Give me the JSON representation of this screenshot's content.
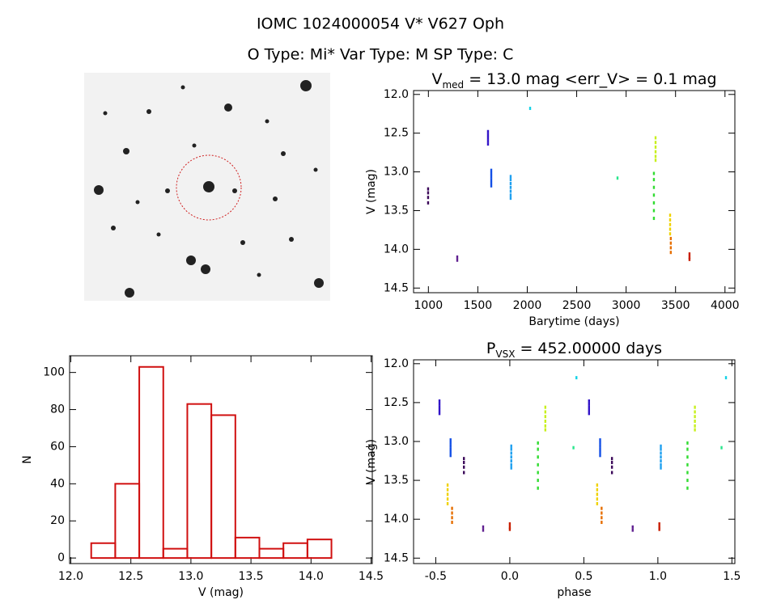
{
  "title": "IOMC 1024000054   V* V627 Oph",
  "subtitle": "O Type: Mi*   Var Type: M   SP Type: C",
  "chart_data": [
    {
      "type": "scatter",
      "title": [
        "V",
        "med",
        " = 13.0 mag <err_V> = 0.1 mag"
      ],
      "xlabel": "Barytime (days)",
      "ylabel": "V (mag)",
      "xlim": [
        850,
        4100
      ],
      "ylim": [
        14.56,
        11.95
      ],
      "xticks": [
        1000,
        1500,
        2000,
        2500,
        3000,
        3500,
        4000
      ],
      "yticks": [
        {
          "value": 12,
          "label": "12.0"
        },
        12.5,
        {
          "value": 13,
          "label": "13.0"
        },
        13.5,
        {
          "value": 14,
          "label": "14.0"
        },
        14.5
      ],
      "series": [
        {
          "color": "#3c0a5a",
          "x": [
            997,
            997,
            997,
            997
          ],
          "values": [
            13.22,
            13.27,
            13.33,
            13.4
          ]
        },
        {
          "color": "#602090",
          "x": [
            1292,
            1292
          ],
          "values": [
            14.1,
            14.14
          ]
        },
        {
          "color": "#3214c8",
          "x": [
            1603,
            1603,
            1603,
            1603,
            1603
          ],
          "values": [
            12.48,
            12.52,
            12.56,
            12.6,
            12.64
          ]
        },
        {
          "color": "#1450e6",
          "x": [
            1636,
            1636,
            1636,
            1636,
            1636,
            1636
          ],
          "values": [
            12.98,
            13.02,
            13.06,
            13.1,
            13.14,
            13.18
          ]
        },
        {
          "color": "#1ea0f0",
          "x": [
            1832,
            1832,
            1832,
            1832,
            1832,
            1832,
            1832
          ],
          "values": [
            13.06,
            13.1,
            13.15,
            13.2,
            13.25,
            13.3,
            13.34
          ]
        },
        {
          "color": "#14d2e6",
          "x": [
            2029
          ],
          "values": [
            12.18
          ]
        },
        {
          "color": "#28e68c",
          "x": [
            2913
          ],
          "values": [
            13.08
          ]
        },
        {
          "color": "#32dc32",
          "x": [
            3281,
            3281,
            3281,
            3281,
            3281,
            3281,
            3281
          ],
          "values": [
            13.02,
            13.1,
            13.2,
            13.3,
            13.4,
            13.5,
            13.6
          ]
        },
        {
          "color": "#c8f01e",
          "x": [
            3298,
            3298,
            3298,
            3298,
            3298,
            3298
          ],
          "values": [
            12.56,
            12.62,
            12.68,
            12.74,
            12.8,
            12.85
          ]
        },
        {
          "color": "#f0d200",
          "x": [
            3445,
            3445,
            3445,
            3445,
            3445
          ],
          "values": [
            13.56,
            13.62,
            13.68,
            13.74,
            13.8
          ]
        },
        {
          "color": "#e66e00",
          "x": [
            3452,
            3452,
            3452,
            3452
          ],
          "values": [
            13.86,
            13.92,
            13.98,
            14.04
          ]
        },
        {
          "color": "#c81e00",
          "x": [
            3641,
            3641,
            3641
          ],
          "values": [
            14.06,
            14.1,
            14.13
          ]
        }
      ]
    },
    {
      "type": "scatter",
      "title": [
        "P",
        "VSX",
        " = 452.00000 days"
      ],
      "xlabel": "phase",
      "ylabel": "V (mag)",
      "xlim": [
        -0.65,
        1.52
      ],
      "ylim": [
        14.57,
        11.95
      ],
      "xticks": [
        -0.5,
        {
          "value": 0,
          "label": "0.0"
        },
        0.5,
        {
          "value": 1,
          "label": "1.0"
        },
        1.5
      ],
      "yticks": [
        {
          "value": 12,
          "label": "12.0"
        },
        12.5,
        {
          "value": 13,
          "label": "13.0"
        },
        13.5,
        {
          "value": 14,
          "label": "14.0"
        },
        14.5
      ],
      "series": [
        {
          "color": "#3c0a5a",
          "x": [
            -0.31,
            -0.31,
            -0.31,
            -0.31,
            0.69,
            0.69,
            0.69,
            0.69
          ],
          "values": [
            13.22,
            13.27,
            13.33,
            13.4,
            13.22,
            13.27,
            13.33,
            13.4
          ]
        },
        {
          "color": "#602090",
          "x": [
            -0.18,
            -0.18,
            0.83,
            0.83
          ],
          "values": [
            14.1,
            14.14,
            14.1,
            14.14
          ]
        },
        {
          "color": "#3214c8",
          "x": [
            -0.475,
            -0.475,
            -0.475,
            -0.475,
            -0.475,
            0.535,
            0.535,
            0.535,
            0.535,
            0.535
          ],
          "values": [
            12.48,
            12.52,
            12.56,
            12.6,
            12.64,
            12.48,
            12.52,
            12.56,
            12.6,
            12.64
          ]
        },
        {
          "color": "#1450e6",
          "x": [
            -0.4,
            -0.4,
            -0.4,
            -0.4,
            -0.4,
            -0.4,
            0.61,
            0.61,
            0.61,
            0.61,
            0.61,
            0.61
          ],
          "values": [
            12.98,
            13.02,
            13.06,
            13.1,
            13.14,
            13.18,
            12.98,
            13.02,
            13.06,
            13.1,
            13.14,
            13.18
          ]
        },
        {
          "color": "#1ea0f0",
          "x": [
            0.01,
            0.01,
            0.01,
            0.01,
            0.01,
            0.01,
            0.01,
            1.02,
            1.02,
            1.02,
            1.02,
            1.02,
            1.02,
            1.02
          ],
          "values": [
            13.06,
            13.1,
            13.15,
            13.2,
            13.25,
            13.3,
            13.34,
            13.06,
            13.1,
            13.15,
            13.2,
            13.25,
            13.3,
            13.34
          ]
        },
        {
          "color": "#14d2e6",
          "x": [
            0.45,
            1.46
          ],
          "values": [
            12.18,
            12.18
          ]
        },
        {
          "color": "#28e68c",
          "x": [
            0.43,
            1.43
          ],
          "values": [
            13.08,
            13.08
          ]
        },
        {
          "color": "#32dc32",
          "x": [
            0.19,
            0.19,
            0.19,
            0.19,
            0.19,
            0.19,
            0.19,
            1.2,
            1.2,
            1.2,
            1.2,
            1.2,
            1.2,
            1.2
          ],
          "values": [
            13.02,
            13.1,
            13.2,
            13.3,
            13.4,
            13.5,
            13.6,
            13.02,
            13.1,
            13.2,
            13.3,
            13.4,
            13.5,
            13.6
          ]
        },
        {
          "color": "#c8f01e",
          "x": [
            0.24,
            0.24,
            0.24,
            0.24,
            0.24,
            0.24,
            1.25,
            1.25,
            1.25,
            1.25,
            1.25,
            1.25
          ],
          "values": [
            12.56,
            12.62,
            12.68,
            12.74,
            12.8,
            12.85,
            12.56,
            12.62,
            12.68,
            12.74,
            12.8,
            12.85
          ]
        },
        {
          "color": "#f0d200",
          "x": [
            -0.42,
            -0.42,
            -0.42,
            -0.42,
            -0.42,
            0.59,
            0.59,
            0.59,
            0.59,
            0.59
          ],
          "values": [
            13.56,
            13.62,
            13.68,
            13.74,
            13.8,
            13.56,
            13.62,
            13.68,
            13.74,
            13.8
          ]
        },
        {
          "color": "#e66e00",
          "x": [
            -0.39,
            -0.39,
            -0.39,
            -0.39,
            0.62,
            0.62,
            0.62,
            0.62
          ],
          "values": [
            13.86,
            13.92,
            13.98,
            14.04,
            13.86,
            13.92,
            13.98,
            14.04
          ]
        },
        {
          "color": "#c81e00",
          "x": [
            0,
            0,
            0,
            1.01,
            1.01,
            1.01
          ],
          "values": [
            14.06,
            14.1,
            14.13,
            14.06,
            14.1,
            14.13
          ]
        }
      ]
    },
    {
      "type": "histogram",
      "xlabel": "V (mag)",
      "ylabel": "N",
      "xlim": [
        11.99,
        14.51
      ],
      "ylim": [
        -3,
        109
      ],
      "xticks": [
        {
          "value": 12,
          "label": "12.0"
        },
        12.5,
        {
          "value": 13,
          "label": "13.0"
        },
        13.5,
        {
          "value": 14,
          "label": "14.0"
        },
        14.5
      ],
      "yticks": [
        0,
        20,
        40,
        60,
        80,
        100
      ],
      "color": "#d01010",
      "bins": [
        12.17,
        12.37,
        12.57,
        12.77,
        12.97,
        13.17,
        13.37,
        13.57,
        13.77,
        13.97,
        14.17
      ],
      "values": [
        8,
        40,
        103,
        5,
        83,
        77,
        11,
        5,
        8,
        10
      ]
    }
  ]
}
